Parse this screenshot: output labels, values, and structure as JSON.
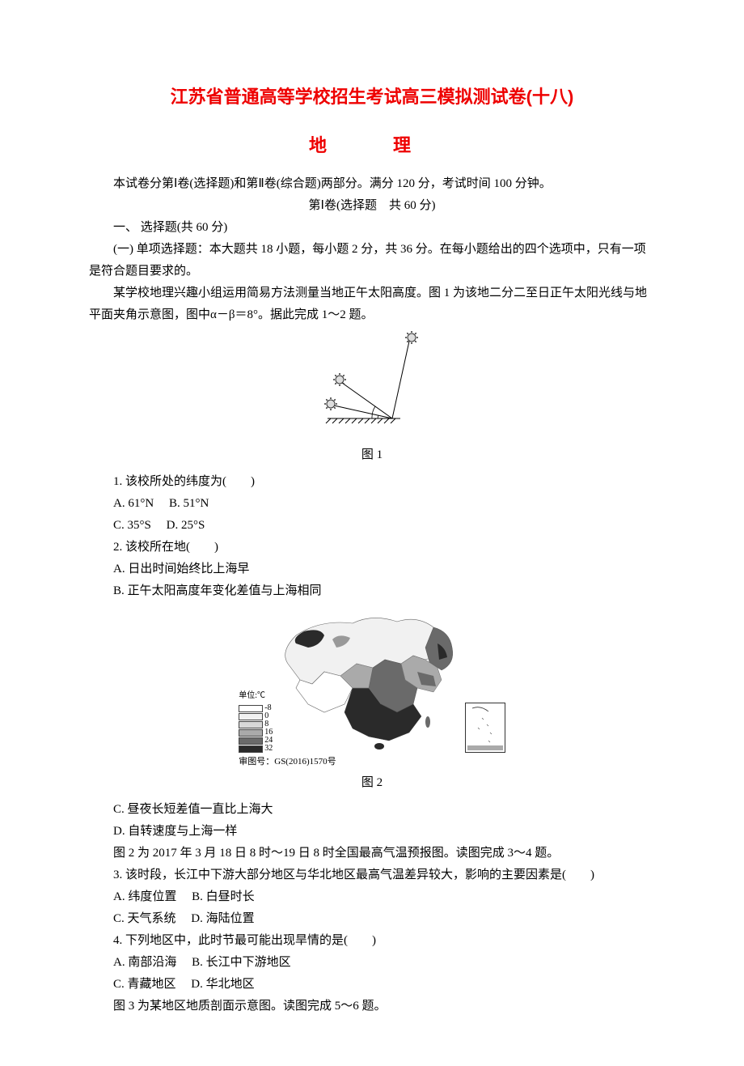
{
  "title": "江苏省普通高等学校招生考试高三模拟测试卷(十八)",
  "subject": "地　理",
  "intro": "本试卷分第Ⅰ卷(选择题)和第Ⅱ卷(综合题)两部分。满分 120 分，考试时间 100 分钟。",
  "section1_header": "第Ⅰ卷(选择题　共 60 分)",
  "section1_title": "一、 选择题(共 60 分)",
  "section1_sub": "(一) 单项选择题：本大题共 18 小题，每小题 2 分，共 36 分。在每小题给出的四个选项中，只有一项是符合题目要求的。",
  "context1": "某学校地理兴趣小组运用简易方法测量当地正午太阳高度。图 1 为该地二分二至日正午太阳光线与地平面夹角示意图，图中α－β＝8°。据此完成 1～2 题。",
  "fig1": {
    "caption": "图 1",
    "colors": {
      "line": "#000000",
      "sun_outline": "#333333",
      "sun_fill": "#dddddd",
      "hatch": "#000000"
    }
  },
  "q1": {
    "stem": "1. 该校所处的纬度为(　　)",
    "optA": "A. 61°N",
    "optB": "B. 51°N",
    "optC": "C. 35°S",
    "optD": "D. 25°S"
  },
  "q2": {
    "stem": "2. 该校所在地(　　)",
    "optA": "A. 日出时间始终比上海早",
    "optB": "B. 正午太阳高度年变化差值与上海相同",
    "optC": "C. 昼夜长短差值一直比上海大",
    "optD": "D. 自转速度与上海一样"
  },
  "fig2": {
    "caption": "图 2",
    "unit_label": "单位:℃",
    "legend": [
      {
        "label": "-8",
        "fill": "#ffffff"
      },
      {
        "label": "0",
        "fill": "#f1f1f1"
      },
      {
        "label": "8",
        "fill": "#d8d8d8"
      },
      {
        "label": "16",
        "fill": "#aaaaaa"
      },
      {
        "label": "24",
        "fill": "#6a6a6a"
      },
      {
        "label": "32",
        "fill": "#2a2a2a"
      }
    ],
    "approval": "审图号：GS(2016)1570号",
    "colors": {
      "border": "#333333"
    }
  },
  "context2": "图 2 为 2017 年 3 月 18 日 8 时～19 日 8 时全国最高气温预报图。读图完成 3～4 题。",
  "q3": {
    "stem": "3. 该时段，长江中下游大部分地区与华北地区最高气温差异较大，影响的主要因素是(　　)",
    "optA": "A. 纬度位置",
    "optB": "B. 白昼时长",
    "optC": "C. 天气系统",
    "optD": "D. 海陆位置"
  },
  "q4": {
    "stem": "4. 下列地区中，此时节最可能出现旱情的是(　　)",
    "optA": "A. 南部沿海",
    "optB": "B. 长江中下游地区",
    "optC": "C. 青藏地区",
    "optD": "D. 华北地区"
  },
  "context3": "图 3 为某地区地质剖面示意图。读图完成 5～6 题。"
}
